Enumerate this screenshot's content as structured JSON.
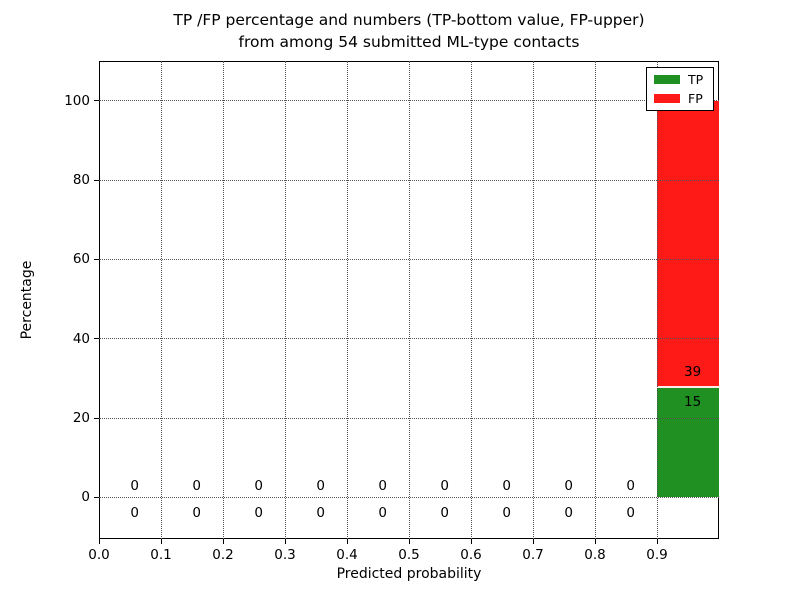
{
  "chart_data": {
    "type": "bar",
    "stacked": true,
    "title": "TP /FP percentage and numbers (TP-bottom value, FP-upper)",
    "subtitle": "from among 54 submitted ML-type contacts",
    "xlabel": "Predicted probability",
    "ylabel": "Percentage",
    "total_contacts": 54,
    "xlim": [
      0.0,
      1.0
    ],
    "ylim": [
      -10.5,
      110.0
    ],
    "xticks": [
      0.0,
      0.1,
      0.2,
      0.3,
      0.4,
      0.5,
      0.6,
      0.7,
      0.8,
      0.9
    ],
    "xtick_labels": [
      "0.0",
      "0.1",
      "0.2",
      "0.3",
      "0.4",
      "0.5",
      "0.6",
      "0.7",
      "0.8",
      "0.9"
    ],
    "yticks": [
      0,
      20,
      40,
      60,
      80,
      100
    ],
    "ytick_labels": [
      "0",
      "20",
      "40",
      "60",
      "80",
      "100"
    ],
    "grid": "dotted",
    "legend_position": "upper right",
    "bin_starts": [
      0.0,
      0.1,
      0.2,
      0.3,
      0.4,
      0.5,
      0.6,
      0.7,
      0.8,
      0.9
    ],
    "bin_width": 0.1,
    "series": [
      {
        "name": "TP",
        "color": "#1f9021",
        "counts": [
          0,
          0,
          0,
          0,
          0,
          0,
          0,
          0,
          0,
          15
        ],
        "percent_of_total": 27.8
      },
      {
        "name": "FP",
        "color": "#fe1b17",
        "counts": [
          0,
          0,
          0,
          0,
          0,
          0,
          0,
          0,
          0,
          39
        ],
        "percent_of_total": 72.2
      }
    ]
  }
}
